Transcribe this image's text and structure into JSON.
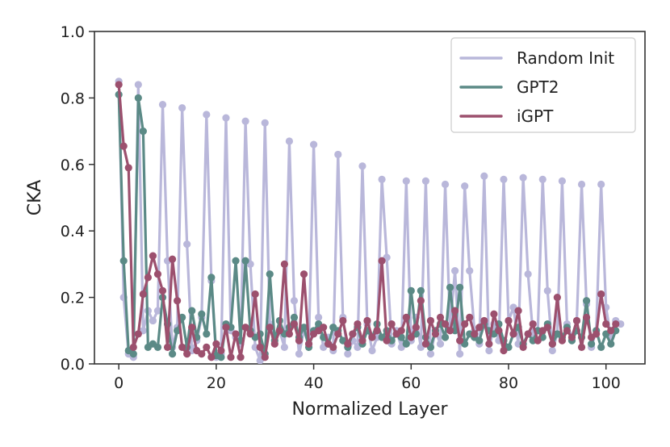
{
  "chart_data": {
    "type": "line",
    "title": "",
    "xlabel": "Normalized Layer",
    "ylabel": "CKA",
    "xlim": [
      -5,
      108
    ],
    "ylim": [
      0,
      1.0
    ],
    "xticks": [
      0,
      20,
      40,
      60,
      80,
      100
    ],
    "yticks": [
      0.0,
      0.2,
      0.4,
      0.6,
      0.8,
      1.0
    ],
    "xtick_labels": [
      "0",
      "20",
      "40",
      "60",
      "80",
      "100"
    ],
    "ytick_labels": [
      "0.0",
      "0.2",
      "0.4",
      "0.6",
      "0.8",
      "1.0"
    ],
    "legend_position": "top-right",
    "grid": false,
    "series": [
      {
        "name": "Random Init",
        "color": "#b9b7da",
        "points": [
          [
            0,
            0.85
          ],
          [
            1,
            0.2
          ],
          [
            2,
            0.03
          ],
          [
            3,
            0.02
          ],
          [
            4,
            0.84
          ],
          [
            5,
            0.1
          ],
          [
            6,
            0.16
          ],
          [
            7,
            0.13
          ],
          [
            8,
            0.16
          ],
          [
            9,
            0.78
          ],
          [
            10,
            0.31
          ],
          [
            11,
            0.05
          ],
          [
            12,
            0.11
          ],
          [
            13,
            0.77
          ],
          [
            14,
            0.36
          ],
          [
            15,
            0.04
          ],
          [
            16,
            0.07
          ],
          [
            17,
            0.14
          ],
          [
            18,
            0.75
          ],
          [
            19,
            0.25
          ],
          [
            20,
            0.02
          ],
          [
            21,
            0.03
          ],
          [
            22,
            0.74
          ],
          [
            23,
            0.1
          ],
          [
            24,
            0.08
          ],
          [
            25,
            0.06
          ],
          [
            26,
            0.73
          ],
          [
            27,
            0.3
          ],
          [
            28,
            0.05
          ],
          [
            29,
            0.01
          ],
          [
            30,
            0.725
          ],
          [
            31,
            0.12
          ],
          [
            32,
            0.08
          ],
          [
            33,
            0.1
          ],
          [
            34,
            0.05
          ],
          [
            35,
            0.67
          ],
          [
            36,
            0.19
          ],
          [
            37,
            0.03
          ],
          [
            38,
            0.1
          ],
          [
            39,
            0.06
          ],
          [
            40,
            0.66
          ],
          [
            41,
            0.14
          ],
          [
            42,
            0.05
          ],
          [
            43,
            0.08
          ],
          [
            44,
            0.04
          ],
          [
            45,
            0.63
          ],
          [
            46,
            0.14
          ],
          [
            47,
            0.03
          ],
          [
            48,
            0.07
          ],
          [
            49,
            0.05
          ],
          [
            50,
            0.595
          ],
          [
            51,
            0.12
          ],
          [
            52,
            0.04
          ],
          [
            53,
            0.08
          ],
          [
            54,
            0.555
          ],
          [
            55,
            0.32
          ],
          [
            56,
            0.06
          ],
          [
            57,
            0.1
          ],
          [
            58,
            0.05
          ],
          [
            59,
            0.55
          ],
          [
            60,
            0.07
          ],
          [
            61,
            0.14
          ],
          [
            62,
            0.05
          ],
          [
            63,
            0.55
          ],
          [
            64,
            0.03
          ],
          [
            65,
            0.1
          ],
          [
            66,
            0.06
          ],
          [
            67,
            0.54
          ],
          [
            68,
            0.11
          ],
          [
            69,
            0.28
          ],
          [
            70,
            0.03
          ],
          [
            71,
            0.535
          ],
          [
            72,
            0.28
          ],
          [
            73,
            0.1
          ],
          [
            74,
            0.06
          ],
          [
            75,
            0.565
          ],
          [
            76,
            0.04
          ],
          [
            77,
            0.12
          ],
          [
            78,
            0.07
          ],
          [
            79,
            0.555
          ],
          [
            80,
            0.13
          ],
          [
            81,
            0.17
          ],
          [
            82,
            0.06
          ],
          [
            83,
            0.56
          ],
          [
            84,
            0.27
          ],
          [
            85,
            0.09
          ],
          [
            86,
            0.1
          ],
          [
            87,
            0.555
          ],
          [
            88,
            0.22
          ],
          [
            89,
            0.04
          ],
          [
            90,
            0.09
          ],
          [
            91,
            0.55
          ],
          [
            92,
            0.12
          ],
          [
            93,
            0.08
          ],
          [
            94,
            0.13
          ],
          [
            95,
            0.54
          ],
          [
            96,
            0.18
          ],
          [
            97,
            0.05
          ],
          [
            98,
            0.1
          ],
          [
            99,
            0.54
          ],
          [
            100,
            0.17
          ],
          [
            101,
            0.08
          ],
          [
            102,
            0.13
          ],
          [
            103,
            0.12
          ]
        ]
      },
      {
        "name": "GPT2",
        "color": "#5b8a86",
        "points": [
          [
            0,
            0.81
          ],
          [
            1,
            0.31
          ],
          [
            2,
            0.04
          ],
          [
            3,
            0.03
          ],
          [
            4,
            0.8
          ],
          [
            5,
            0.7
          ],
          [
            6,
            0.05
          ],
          [
            7,
            0.06
          ],
          [
            8,
            0.05
          ],
          [
            9,
            0.2
          ],
          [
            10,
            0.12
          ],
          [
            11,
            0.03
          ],
          [
            12,
            0.1
          ],
          [
            13,
            0.14
          ],
          [
            14,
            0.05
          ],
          [
            15,
            0.16
          ],
          [
            16,
            0.08
          ],
          [
            17,
            0.15
          ],
          [
            18,
            0.09
          ],
          [
            19,
            0.26
          ],
          [
            20,
            0.025
          ],
          [
            21,
            0.02
          ],
          [
            22,
            0.12
          ],
          [
            23,
            0.11
          ],
          [
            24,
            0.31
          ],
          [
            25,
            0.07
          ],
          [
            26,
            0.31
          ],
          [
            27,
            0.1
          ],
          [
            28,
            0.08
          ],
          [
            29,
            0.09
          ],
          [
            30,
            0.03
          ],
          [
            31,
            0.27
          ],
          [
            32,
            0.07
          ],
          [
            33,
            0.13
          ],
          [
            34,
            0.09
          ],
          [
            35,
            0.11
          ],
          [
            36,
            0.14
          ],
          [
            37,
            0.08
          ],
          [
            38,
            0.11
          ],
          [
            39,
            0.05
          ],
          [
            40,
            0.1
          ],
          [
            41,
            0.12
          ],
          [
            42,
            0.08
          ],
          [
            43,
            0.06
          ],
          [
            44,
            0.11
          ],
          [
            45,
            0.1
          ],
          [
            46,
            0.07
          ],
          [
            47,
            0.05
          ],
          [
            48,
            0.09
          ],
          [
            49,
            0.11
          ],
          [
            50,
            0.06
          ],
          [
            51,
            0.1
          ],
          [
            52,
            0.08
          ],
          [
            53,
            0.12
          ],
          [
            54,
            0.08
          ],
          [
            55,
            0.1
          ],
          [
            56,
            0.07
          ],
          [
            57,
            0.09
          ],
          [
            58,
            0.08
          ],
          [
            59,
            0.06
          ],
          [
            60,
            0.22
          ],
          [
            61,
            0.09
          ],
          [
            62,
            0.22
          ],
          [
            63,
            0.08
          ],
          [
            64,
            0.05
          ],
          [
            65,
            0.1
          ],
          [
            66,
            0.12
          ],
          [
            67,
            0.08
          ],
          [
            68,
            0.23
          ],
          [
            69,
            0.1
          ],
          [
            70,
            0.23
          ],
          [
            71,
            0.06
          ],
          [
            72,
            0.09
          ],
          [
            73,
            0.08
          ],
          [
            74,
            0.07
          ],
          [
            75,
            0.12
          ],
          [
            76,
            0.1
          ],
          [
            77,
            0.09
          ],
          [
            78,
            0.12
          ],
          [
            79,
            0.07
          ],
          [
            80,
            0.05
          ],
          [
            81,
            0.09
          ],
          [
            82,
            0.11
          ],
          [
            83,
            0.06
          ],
          [
            84,
            0.09
          ],
          [
            85,
            0.07
          ],
          [
            86,
            0.1
          ],
          [
            87,
            0.08
          ],
          [
            88,
            0.12
          ],
          [
            89,
            0.06
          ],
          [
            90,
            0.09
          ],
          [
            91,
            0.08
          ],
          [
            92,
            0.11
          ],
          [
            93,
            0.07
          ],
          [
            94,
            0.1
          ],
          [
            95,
            0.08
          ],
          [
            96,
            0.19
          ],
          [
            97,
            0.06
          ],
          [
            98,
            0.1
          ],
          [
            99,
            0.05
          ],
          [
            100,
            0.09
          ],
          [
            101,
            0.06
          ],
          [
            102,
            0.1
          ]
        ]
      },
      {
        "name": "iGPT",
        "color": "#9c506e",
        "points": [
          [
            0,
            0.84
          ],
          [
            1,
            0.655
          ],
          [
            2,
            0.59
          ],
          [
            3,
            0.05
          ],
          [
            4,
            0.09
          ],
          [
            5,
            0.21
          ],
          [
            6,
            0.26
          ],
          [
            7,
            0.325
          ],
          [
            8,
            0.27
          ],
          [
            9,
            0.22
          ],
          [
            10,
            0.05
          ],
          [
            11,
            0.315
          ],
          [
            12,
            0.19
          ],
          [
            13,
            0.05
          ],
          [
            14,
            0.03
          ],
          [
            15,
            0.11
          ],
          [
            16,
            0.04
          ],
          [
            17,
            0.03
          ],
          [
            18,
            0.05
          ],
          [
            19,
            0.02
          ],
          [
            20,
            0.06
          ],
          [
            21,
            0.04
          ],
          [
            22,
            0.11
          ],
          [
            23,
            0.02
          ],
          [
            24,
            0.09
          ],
          [
            25,
            0.02
          ],
          [
            26,
            0.11
          ],
          [
            27,
            0.09
          ],
          [
            28,
            0.21
          ],
          [
            29,
            0.05
          ],
          [
            30,
            0.02
          ],
          [
            31,
            0.11
          ],
          [
            32,
            0.06
          ],
          [
            33,
            0.1
          ],
          [
            34,
            0.3
          ],
          [
            35,
            0.09
          ],
          [
            36,
            0.12
          ],
          [
            37,
            0.07
          ],
          [
            38,
            0.27
          ],
          [
            39,
            0.06
          ],
          [
            40,
            0.09
          ],
          [
            41,
            0.1
          ],
          [
            42,
            0.11
          ],
          [
            43,
            0.06
          ],
          [
            44,
            0.05
          ],
          [
            45,
            0.09
          ],
          [
            46,
            0.13
          ],
          [
            47,
            0.06
          ],
          [
            48,
            0.09
          ],
          [
            49,
            0.12
          ],
          [
            50,
            0.07
          ],
          [
            51,
            0.13
          ],
          [
            52,
            0.08
          ],
          [
            53,
            0.1
          ],
          [
            54,
            0.31
          ],
          [
            55,
            0.07
          ],
          [
            56,
            0.12
          ],
          [
            57,
            0.09
          ],
          [
            58,
            0.1
          ],
          [
            59,
            0.14
          ],
          [
            60,
            0.08
          ],
          [
            61,
            0.11
          ],
          [
            62,
            0.19
          ],
          [
            63,
            0.06
          ],
          [
            64,
            0.13
          ],
          [
            65,
            0.09
          ],
          [
            66,
            0.14
          ],
          [
            67,
            0.12
          ],
          [
            68,
            0.1
          ],
          [
            69,
            0.16
          ],
          [
            70,
            0.07
          ],
          [
            71,
            0.12
          ],
          [
            72,
            0.14
          ],
          [
            73,
            0.09
          ],
          [
            74,
            0.11
          ],
          [
            75,
            0.13
          ],
          [
            76,
            0.06
          ],
          [
            77,
            0.15
          ],
          [
            78,
            0.1
          ],
          [
            79,
            0.04
          ],
          [
            80,
            0.13
          ],
          [
            81,
            0.09
          ],
          [
            82,
            0.16
          ],
          [
            83,
            0.05
          ],
          [
            84,
            0.09
          ],
          [
            85,
            0.12
          ],
          [
            86,
            0.07
          ],
          [
            87,
            0.1
          ],
          [
            88,
            0.11
          ],
          [
            89,
            0.06
          ],
          [
            90,
            0.2
          ],
          [
            91,
            0.07
          ],
          [
            92,
            0.1
          ],
          [
            93,
            0.08
          ],
          [
            94,
            0.13
          ],
          [
            95,
            0.05
          ],
          [
            96,
            0.14
          ],
          [
            97,
            0.08
          ],
          [
            98,
            0.09
          ],
          [
            99,
            0.21
          ],
          [
            100,
            0.12
          ],
          [
            101,
            0.1
          ],
          [
            102,
            0.12
          ]
        ]
      }
    ]
  }
}
